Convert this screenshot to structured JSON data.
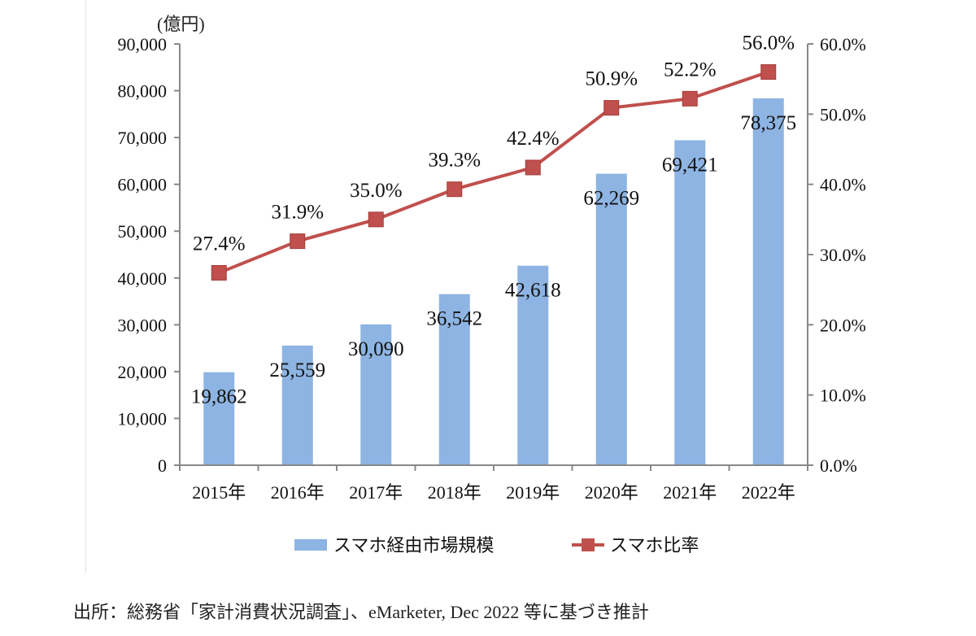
{
  "chart_data": {
    "type": "bar+line",
    "unit_label": "(億円)",
    "categories": [
      "2015年",
      "2016年",
      "2017年",
      "2018年",
      "2019年",
      "2020年",
      "2021年",
      "2022年"
    ],
    "series": [
      {
        "name": "スマホ経由市場規模",
        "type": "bar",
        "axis": "left",
        "color": "#8db4e2",
        "values": [
          19862,
          25559,
          30090,
          36542,
          42618,
          62269,
          69421,
          78375
        ],
        "labels": [
          "19,862",
          "25,559",
          "30,090",
          "36,542",
          "42,618",
          "62,269",
          "69,421",
          "78,375"
        ]
      },
      {
        "name": "スマホ比率",
        "type": "line",
        "axis": "right",
        "color": "#c0504d",
        "values": [
          27.4,
          31.9,
          35.0,
          39.3,
          42.4,
          50.9,
          52.2,
          56.0
        ],
        "labels": [
          "27.4%",
          "31.9%",
          "35.0%",
          "39.3%",
          "42.4%",
          "50.9%",
          "52.2%",
          "56.0%"
        ]
      }
    ],
    "y_left": {
      "range": [
        0,
        90000
      ],
      "ticks": [
        "0",
        "10,000",
        "20,000",
        "30,000",
        "40,000",
        "50,000",
        "60,000",
        "70,000",
        "80,000",
        "90,000"
      ]
    },
    "y_right": {
      "range": [
        0,
        60
      ],
      "ticks": [
        "0.0%",
        "10.0%",
        "20.0%",
        "30.0%",
        "40.0%",
        "50.0%",
        "60.0%"
      ]
    },
    "grid": false,
    "legend_position": "bottom"
  },
  "source": "出所：総務省「家計消費状況調査」、eMarketer, Dec 2022 等に基づき推計"
}
